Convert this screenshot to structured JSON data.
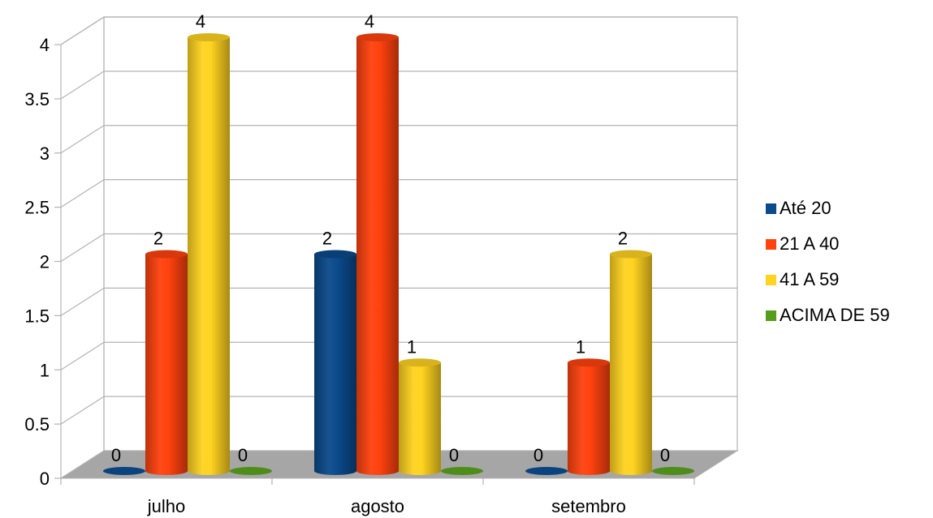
{
  "chart_data": {
    "type": "bar",
    "title": "",
    "xlabel": "",
    "ylabel": "",
    "ylim": [
      0,
      4
    ],
    "yticks": [
      "0",
      "0.5",
      "1",
      "1.5",
      "2",
      "2.5",
      "3",
      "3.5",
      "4"
    ],
    "categories": [
      "julho",
      "agosto",
      "setembro"
    ],
    "series": [
      {
        "name": "Até 20",
        "values": [
          0,
          2,
          0
        ],
        "color": "#0B4A8B"
      },
      {
        "name": "21 A 40",
        "values": [
          2,
          4,
          1
        ],
        "color": "#FF420E"
      },
      {
        "name": "41 A 59",
        "values": [
          4,
          1,
          2
        ],
        "color": "#FFD320"
      },
      {
        "name": "ACIMA DE 59",
        "values": [
          0,
          0,
          0
        ],
        "color": "#579D1C"
      }
    ],
    "grid": true,
    "legend": "right",
    "style": "3d-cylinder"
  }
}
